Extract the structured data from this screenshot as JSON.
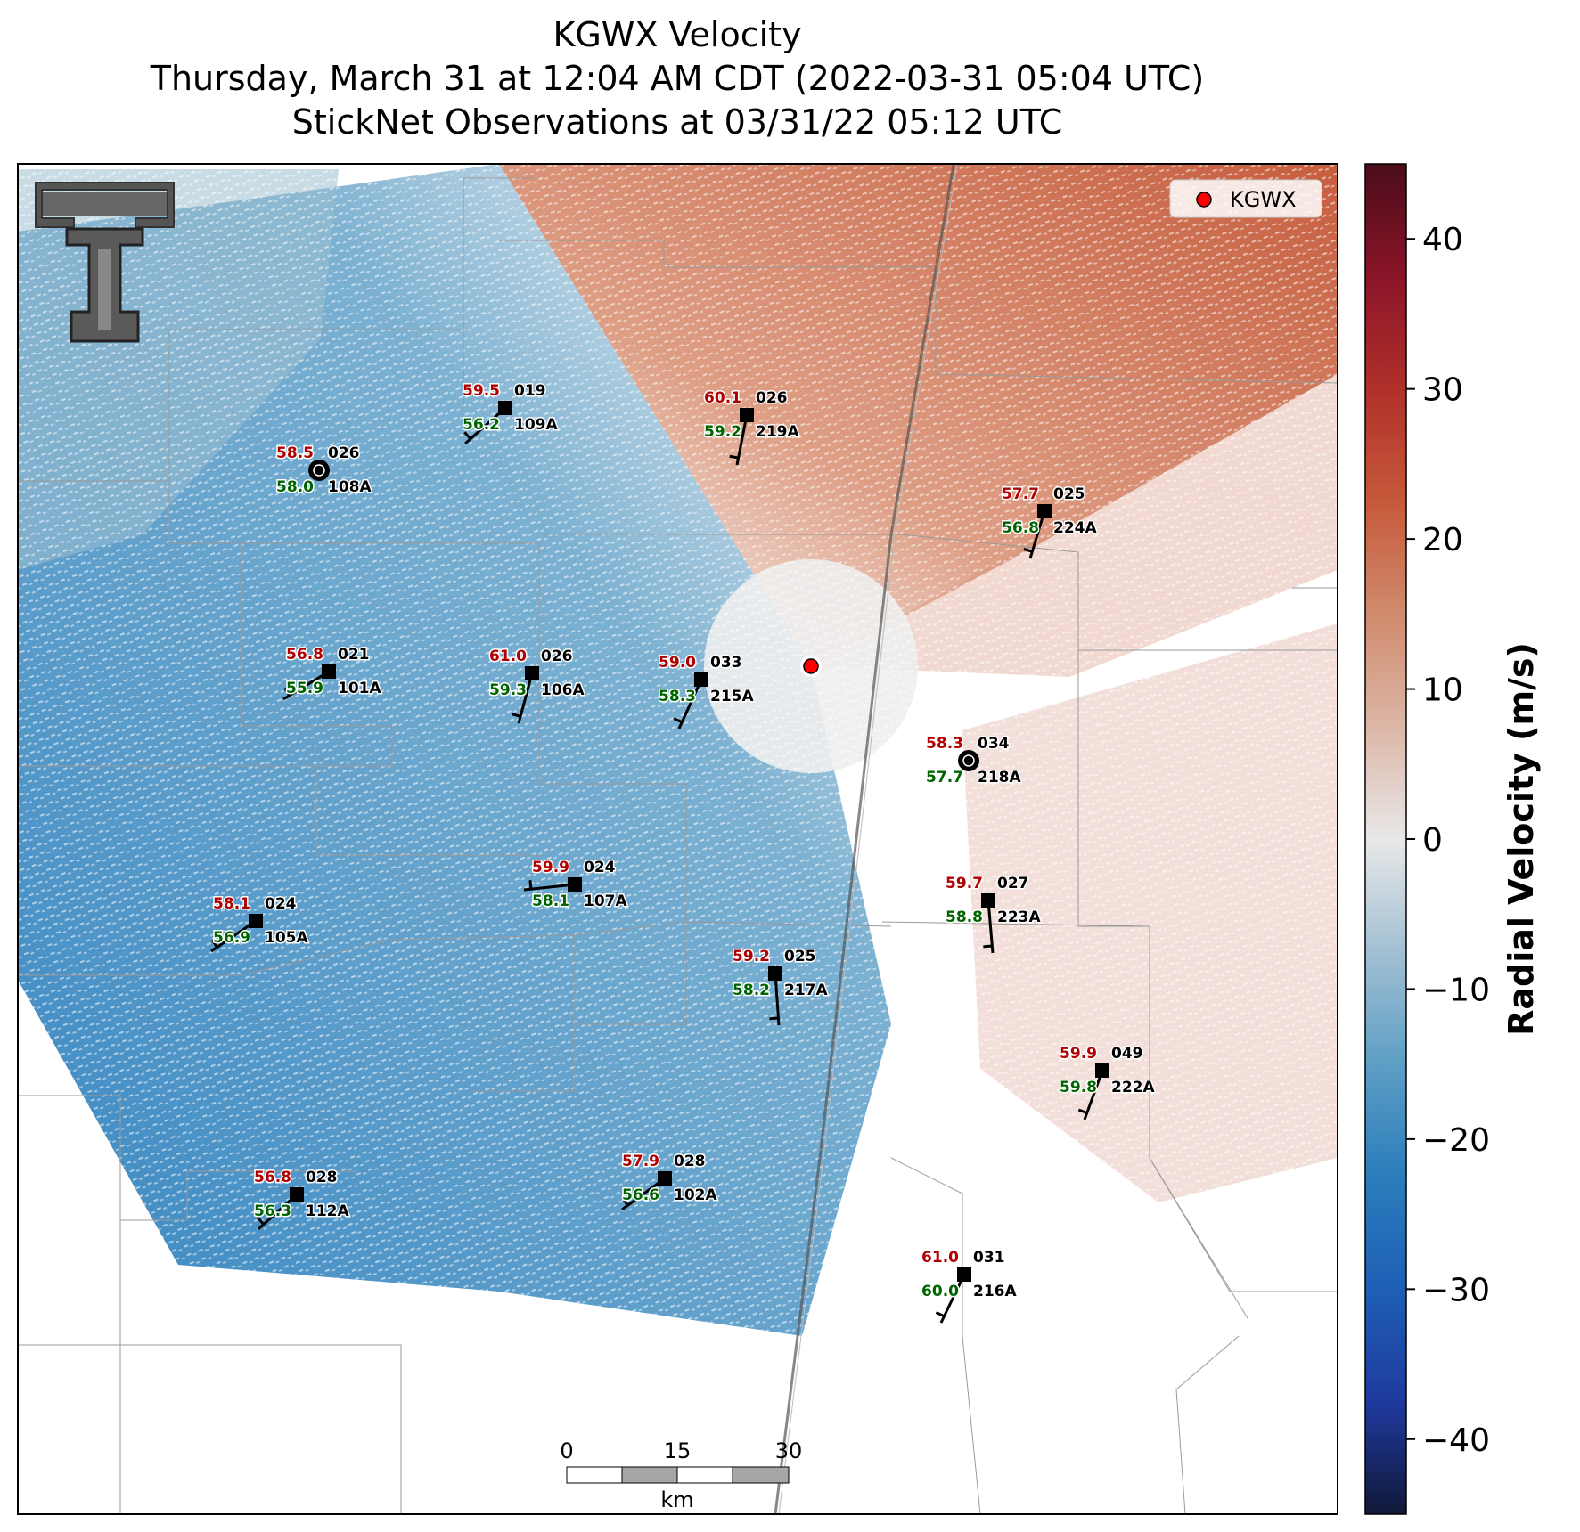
{
  "title": {
    "line1": "KGWX Velocity",
    "line2": "Thursday, March 31 at 12:04 AM CDT (2022-03-31 05:04 UTC)",
    "line3": "StickNet Observations at 03/31/22 05:12 UTC"
  },
  "legend": {
    "label": "KGWX"
  },
  "colorbar": {
    "label": "Radial Velocity (m/s)",
    "range": [
      -45,
      45
    ],
    "ticks": [
      "40",
      "30",
      "20",
      "10",
      "0",
      "−10",
      "−20",
      "−30",
      "−40"
    ],
    "colors": [
      "#111838",
      "#1f3a9e",
      "#1e5fb5",
      "#2b7dbc",
      "#5d9ec4",
      "#a2c0d3",
      "#e8e8e8",
      "#dcb6a6",
      "#d08b6d",
      "#c6593a",
      "#b0302a",
      "#8a1428",
      "#4a0d1a"
    ]
  },
  "scalebar": {
    "ticks": [
      "0",
      "15",
      "30"
    ],
    "unit": "km"
  },
  "radar": {
    "name": "KGWX",
    "marker_color": "#ff0000"
  },
  "stations": [
    {
      "id": "019",
      "temp": "59.5",
      "dew": "56.2",
      "probe": "109A"
    },
    {
      "id": "026",
      "temp": "58.5",
      "dew": "58.0",
      "probe": "108A"
    },
    {
      "id": "026",
      "temp": "60.1",
      "dew": "59.2",
      "probe": "219A"
    },
    {
      "id": "025",
      "temp": "57.7",
      "dew": "56.8",
      "probe": "224A"
    },
    {
      "id": "021",
      "temp": "56.8",
      "dew": "55.9",
      "probe": "101A"
    },
    {
      "id": "026",
      "temp": "61.0",
      "dew": "59.3",
      "probe": "106A"
    },
    {
      "id": "033",
      "temp": "59.0",
      "dew": "58.3",
      "probe": "215A"
    },
    {
      "id": "034",
      "temp": "58.3",
      "dew": "57.7",
      "probe": "218A"
    },
    {
      "id": "024",
      "temp": "59.9",
      "dew": "58.1",
      "probe": "107A"
    },
    {
      "id": "024",
      "temp": "58.1",
      "dew": "56.9",
      "probe": "105A"
    },
    {
      "id": "027",
      "temp": "59.7",
      "dew": "58.8",
      "probe": "223A"
    },
    {
      "id": "025",
      "temp": "59.2",
      "dew": "58.2",
      "probe": "217A"
    },
    {
      "id": "049",
      "temp": "59.9",
      "dew": "59.8",
      "probe": "222A"
    },
    {
      "id": "028",
      "temp": "57.9",
      "dew": "56.6",
      "probe": "102A"
    },
    {
      "id": "028",
      "temp": "56.8",
      "dew": "56.3",
      "probe": "112A"
    },
    {
      "id": "031",
      "temp": "61.0",
      "dew": "60.0",
      "probe": "216A"
    }
  ],
  "colors": {
    "temp": "#b00000",
    "dew": "#006400",
    "id": "#000000"
  }
}
